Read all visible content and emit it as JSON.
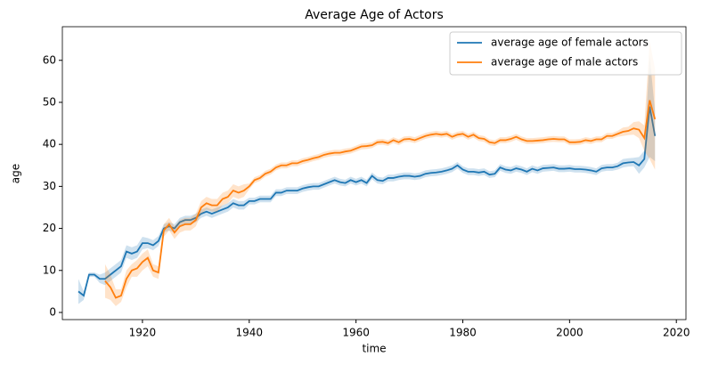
{
  "chart_data": {
    "type": "line",
    "title": "Average Age of Actors",
    "x_label": "time",
    "y_label": "age",
    "x": [
      1908,
      1909,
      1910,
      1911,
      1912,
      1913,
      1914,
      1915,
      1916,
      1917,
      1918,
      1919,
      1920,
      1921,
      1922,
      1923,
      1924,
      1925,
      1926,
      1927,
      1928,
      1929,
      1930,
      1931,
      1932,
      1933,
      1934,
      1935,
      1936,
      1937,
      1938,
      1939,
      1940,
      1941,
      1942,
      1943,
      1944,
      1945,
      1946,
      1947,
      1948,
      1949,
      1950,
      1951,
      1952,
      1953,
      1954,
      1955,
      1956,
      1957,
      1958,
      1959,
      1960,
      1961,
      1962,
      1963,
      1964,
      1965,
      1966,
      1967,
      1968,
      1969,
      1970,
      1971,
      1972,
      1973,
      1974,
      1975,
      1976,
      1977,
      1978,
      1979,
      1980,
      1981,
      1982,
      1983,
      1984,
      1985,
      1986,
      1987,
      1988,
      1989,
      1990,
      1991,
      1992,
      1993,
      1994,
      1995,
      1996,
      1997,
      1998,
      1999,
      2000,
      2001,
      2002,
      2003,
      2004,
      2005,
      2006,
      2007,
      2008,
      2009,
      2010,
      2011,
      2012,
      2013,
      2014,
      2015,
      2016
    ],
    "series": [
      {
        "name": "average age of female actors",
        "color": "#1f77b4",
        "values": [
          5,
          4,
          9,
          9,
          8,
          8,
          9,
          10,
          11,
          14.5,
          14,
          14.5,
          16.5,
          16.5,
          16,
          17,
          20,
          20.5,
          20,
          21.5,
          22,
          22,
          22.5,
          23.5,
          24,
          23.5,
          24,
          24.5,
          25,
          26,
          25.5,
          25.5,
          26.5,
          26.5,
          27,
          27,
          27,
          28.5,
          28.5,
          29,
          29,
          29,
          29.5,
          29.8,
          30,
          30,
          30.5,
          31,
          31.5,
          31,
          30.8,
          31.5,
          31,
          31.5,
          30.8,
          32.5,
          31.5,
          31.3,
          32,
          32,
          32.3,
          32.5,
          32.5,
          32.3,
          32.5,
          33,
          33.2,
          33.3,
          33.5,
          33.8,
          34.2,
          35,
          34,
          33.5,
          33.5,
          33.3,
          33.5,
          32.8,
          33,
          34.5,
          34,
          33.8,
          34.3,
          34,
          33.5,
          34.2,
          33.8,
          34.3,
          34.4,
          34.5,
          34.2,
          34.2,
          34.3,
          34.1,
          34.1,
          34,
          33.8,
          33.5,
          34.3,
          34.5,
          34.5,
          34.8,
          35.5,
          35.7,
          35.8,
          35,
          36.5,
          49,
          42
        ],
        "ci": [
          3,
          1,
          0.5,
          0.5,
          1,
          1.5,
          1.5,
          1.5,
          1.5,
          1.5,
          1.5,
          1.5,
          1.5,
          1.2,
          1.2,
          1.2,
          1,
          1,
          1,
          1,
          1,
          1,
          1,
          1,
          1,
          1,
          1,
          1,
          1,
          1,
          1,
          1,
          0.8,
          0.8,
          0.8,
          0.8,
          0.8,
          0.8,
          0.8,
          0.8,
          0.8,
          0.8,
          0.8,
          0.8,
          0.8,
          0.8,
          0.8,
          0.8,
          0.8,
          0.8,
          0.8,
          0.8,
          0.8,
          0.8,
          0.8,
          0.8,
          0.8,
          0.8,
          0.8,
          0.8,
          0.8,
          0.8,
          0.8,
          0.8,
          0.8,
          0.8,
          0.8,
          0.8,
          0.8,
          0.8,
          0.8,
          0.8,
          0.8,
          0.8,
          0.8,
          0.8,
          0.8,
          0.8,
          0.8,
          0.8,
          0.8,
          0.8,
          0.8,
          0.8,
          0.8,
          0.8,
          0.8,
          0.8,
          0.8,
          0.8,
          0.8,
          0.8,
          0.8,
          0.8,
          0.8,
          0.8,
          0.8,
          0.8,
          0.8,
          0.8,
          0.8,
          0.8,
          1,
          1,
          1,
          2,
          2,
          12,
          6
        ]
      },
      {
        "name": "average age of male actors",
        "color": "#ff7f0e",
        "values": [
          null,
          null,
          null,
          null,
          null,
          7.5,
          6,
          3.5,
          4,
          8,
          10,
          10.5,
          12,
          13,
          10,
          9.5,
          19.5,
          21,
          19,
          20.5,
          21,
          21,
          22,
          25,
          26,
          25.5,
          25.5,
          27,
          27.5,
          29,
          28.5,
          29,
          30,
          31.5,
          32,
          33,
          33.5,
          34.5,
          35,
          35,
          35.5,
          35.5,
          36,
          36.3,
          36.7,
          37,
          37.5,
          37.8,
          38,
          38,
          38.3,
          38.5,
          39,
          39.5,
          39.6,
          39.8,
          40.5,
          40.6,
          40.3,
          41,
          40.5,
          41.2,
          41.3,
          41,
          41.5,
          42,
          42.3,
          42.5,
          42.3,
          42.5,
          41.8,
          42.3,
          42.5,
          41.8,
          42.3,
          41.5,
          41.3,
          40.5,
          40.3,
          41,
          41,
          41.3,
          41.8,
          41.2,
          40.8,
          40.8,
          40.9,
          41,
          41.2,
          41.3,
          41.2,
          41.2,
          40.5,
          40.5,
          40.6,
          41,
          40.8,
          41.2,
          41.2,
          42,
          42,
          42.5,
          43,
          43.2,
          43.8,
          43.5,
          41.5,
          50.5,
          46
        ],
        "ci": [
          null,
          null,
          null,
          null,
          null,
          4,
          3,
          2,
          1.5,
          2,
          1.5,
          2,
          2,
          2,
          1.5,
          1.5,
          1.5,
          1.5,
          1.5,
          1.5,
          1.5,
          1.5,
          1.5,
          1.5,
          1.5,
          1.5,
          1.5,
          1.5,
          1.5,
          1.5,
          1.5,
          1.5,
          0.7,
          0.7,
          0.7,
          0.7,
          0.7,
          0.7,
          0.7,
          0.7,
          0.7,
          0.7,
          0.7,
          0.7,
          0.7,
          0.7,
          0.7,
          0.7,
          0.7,
          0.7,
          0.7,
          0.7,
          0.7,
          0.7,
          0.7,
          0.7,
          0.7,
          0.7,
          0.7,
          0.7,
          0.7,
          0.7,
          0.7,
          0.7,
          0.7,
          0.7,
          0.7,
          0.7,
          0.7,
          0.7,
          0.7,
          0.7,
          0.7,
          0.7,
          0.7,
          0.7,
          0.7,
          0.7,
          0.7,
          0.7,
          0.7,
          0.7,
          0.7,
          0.7,
          0.7,
          0.7,
          0.7,
          0.7,
          0.7,
          0.7,
          0.7,
          0.7,
          0.7,
          0.7,
          0.7,
          0.7,
          0.7,
          0.7,
          0.7,
          0.7,
          0.7,
          0.7,
          1,
          1,
          1.5,
          2,
          3,
          14,
          12
        ]
      }
    ],
    "xlim": [
      1905,
      2021.8
    ],
    "xticks": [
      1920,
      1940,
      1960,
      1980,
      2000,
      2020
    ],
    "ylim": [
      -1.7,
      68
    ],
    "yticks": [
      0,
      10,
      20,
      30,
      40,
      50,
      60
    ],
    "legend": "upper right",
    "grid": false
  }
}
